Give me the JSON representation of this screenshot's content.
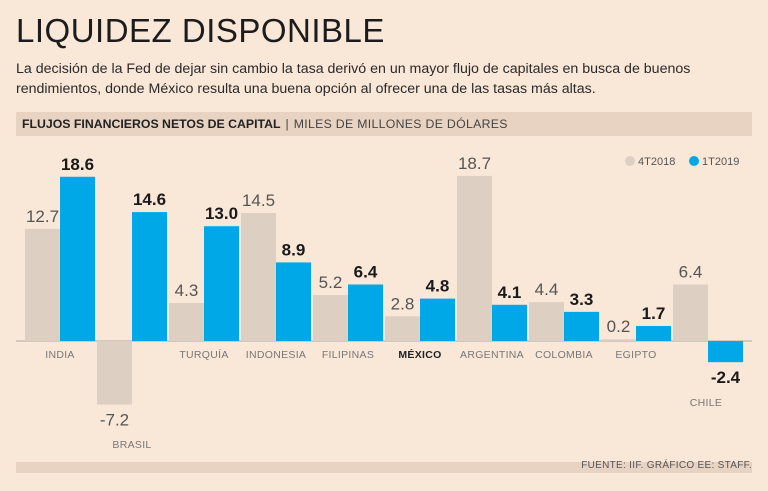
{
  "header": {
    "title": "LIQUIDEZ DISPONIBLE",
    "subtitle": "La decisión de la Fed de dejar sin cambio la tasa derivó en un mayor flujo de capitales en busca de buenos rendimientos, donde México resulta una buena opción al ofrecer una de las tasas más altas."
  },
  "chart_header": {
    "label": "FLUJOS FINANCIEROS NETOS DE CAPITAL",
    "separator": "|",
    "unit": "MILES DE MILLONES DE DÓLARES"
  },
  "footer": {
    "source": "FUENTE: IIF. GRÁFICO EE: STAFF."
  },
  "colors": {
    "series_2018": "#ddd0c2",
    "series_2019": "#00a8e8",
    "background": "#f9e7d8",
    "band": "#e8d3c2",
    "baseline": "#a9a9a9"
  },
  "chart_data": {
    "type": "bar",
    "title": "FLUJOS FINANCIEROS NETOS DE CAPITAL",
    "ylabel": "MILES DE MILLONES DE DÓLARES",
    "xlabel": "",
    "categories": [
      "INDIA",
      "BRASIL",
      "TURQUÍA",
      "INDONESIA",
      "FILIPINAS",
      "MÉXICO",
      "ARGENTINA",
      "COLOMBIA",
      "EGIPTO",
      "CHILE"
    ],
    "highlight_category": "MÉXICO",
    "series": [
      {
        "name": "4T2018",
        "values": [
          12.7,
          null,
          4.3,
          14.5,
          5.2,
          2.8,
          18.7,
          4.4,
          0.2,
          6.4
        ]
      },
      {
        "name": "1T2019",
        "values": [
          18.6,
          14.6,
          13.0,
          8.9,
          6.4,
          4.8,
          4.1,
          3.3,
          1.7,
          -2.4
        ]
      }
    ],
    "value_labels": {
      "4T2018": [
        "12.7",
        "-7.2",
        "4.3",
        "14.5",
        "5.2",
        "2.8",
        "18.7",
        "4.4",
        "0.2",
        "6.4"
      ],
      "1T2019": [
        "18.6",
        "14.6",
        "13.0",
        "8.9",
        "6.4",
        "4.8",
        "4.1",
        "3.3",
        "1.7",
        "-2.4"
      ]
    },
    "brasil_4t2018": -7.2,
    "legend": [
      "4T2018",
      "1T2019"
    ],
    "legend_position": "top-right",
    "ylim": [
      -7.2,
      18.7
    ],
    "grid": false
  }
}
